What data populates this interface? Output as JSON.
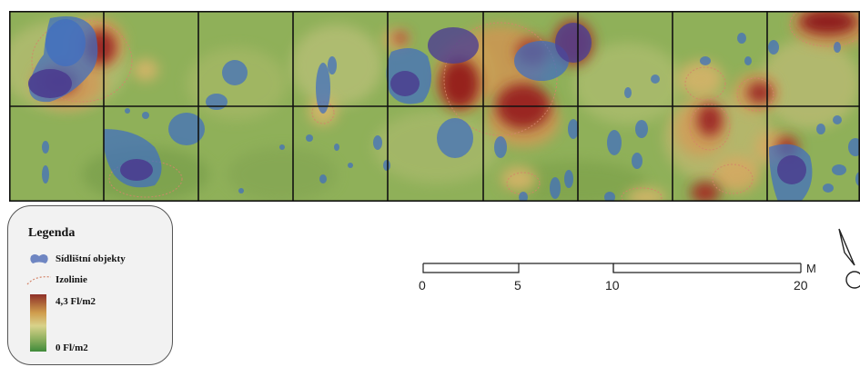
{
  "map": {
    "grid": {
      "columns": 9,
      "rows": 2
    },
    "colors": {
      "base": "#8fb059",
      "hot": "#9a1f22",
      "warm": "#d49a4d",
      "features": "#3f6ec2",
      "isoline": "#d4856a",
      "grid": "#111111"
    }
  },
  "legend": {
    "title": "Legenda",
    "features_label": "Sídlištní objekty",
    "isoline_label": "Izolinie",
    "max_label": "4,3 Fl/m2",
    "min_label": "0 Fl/m2"
  },
  "scale": {
    "unit": "M",
    "ticks": [
      "0",
      "5",
      "10",
      "20"
    ]
  },
  "north_arrow": {
    "icon": "north-arrow-icon"
  }
}
